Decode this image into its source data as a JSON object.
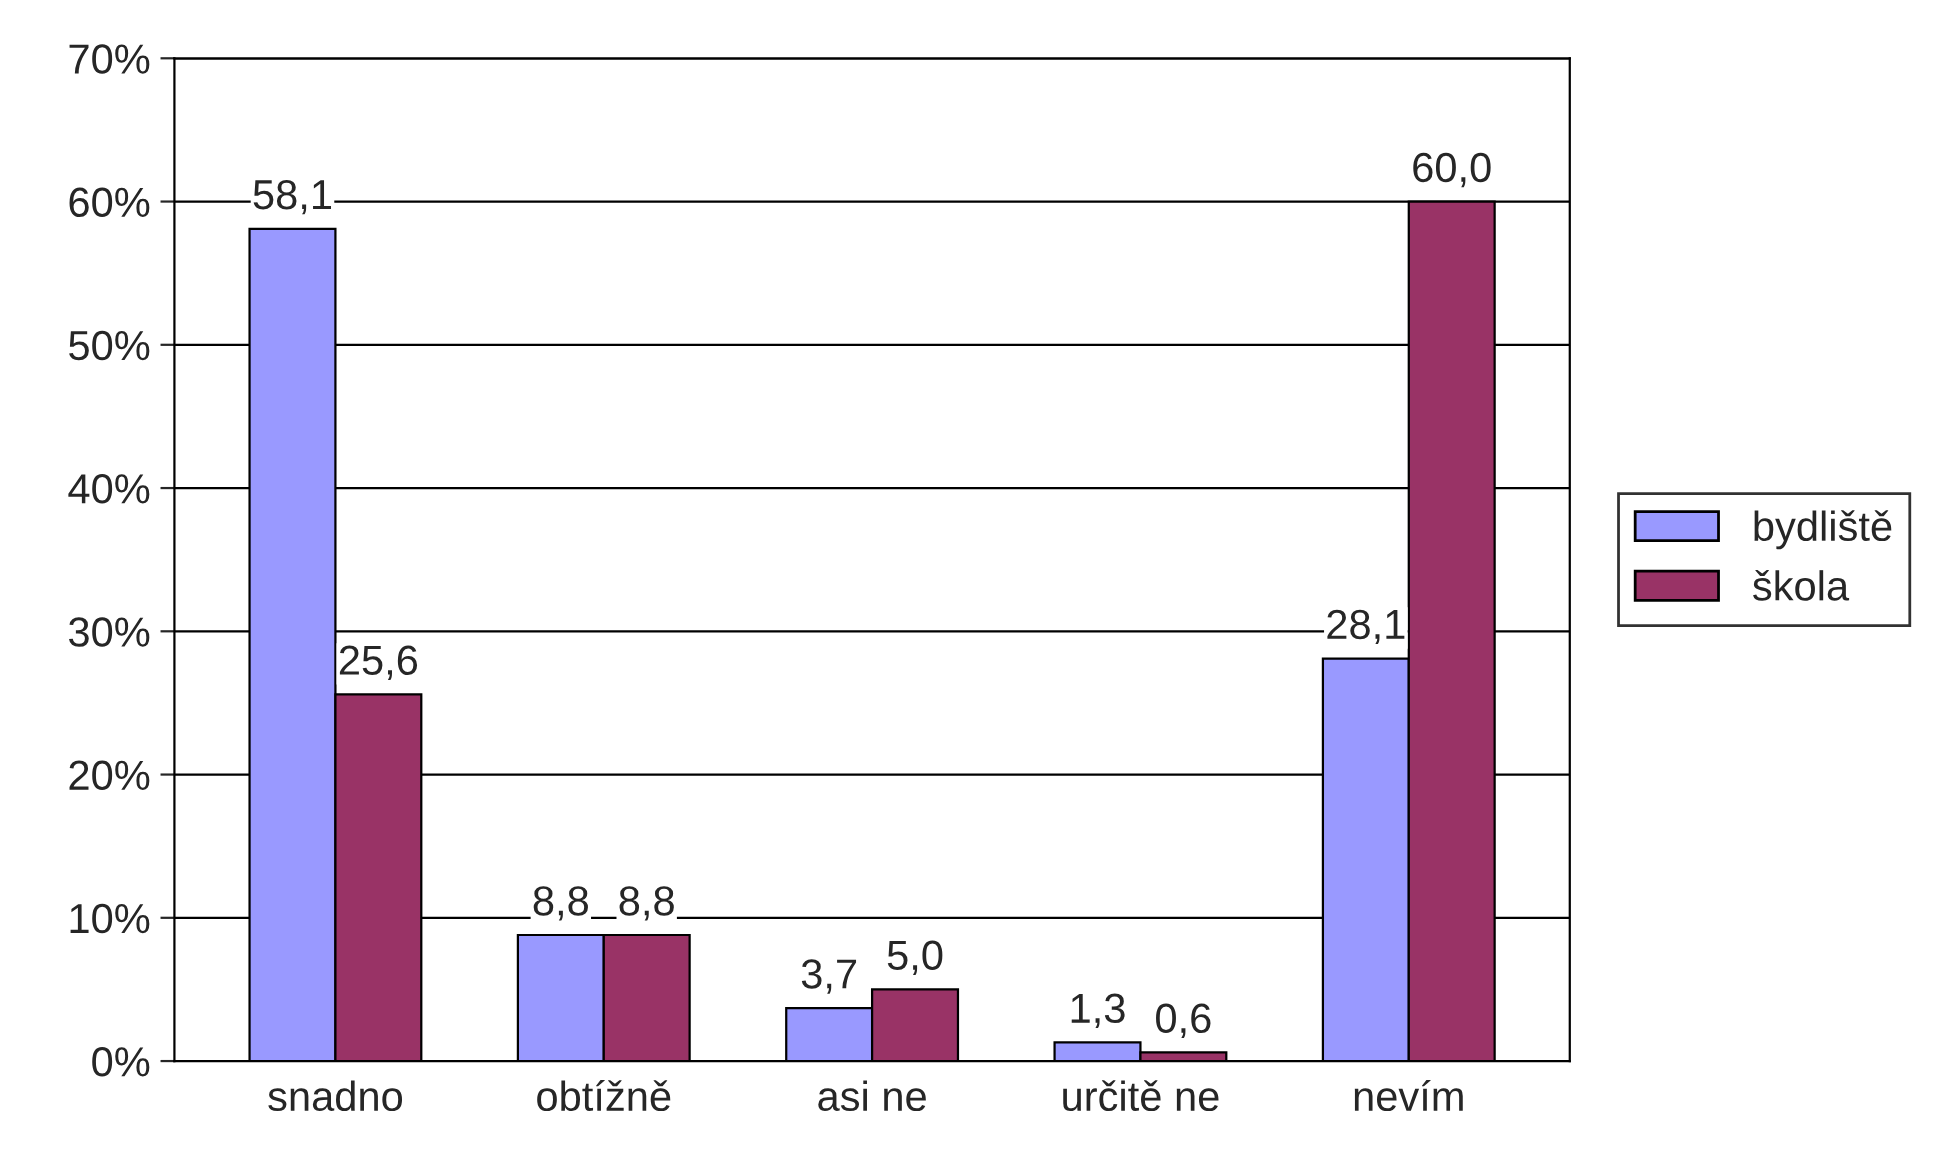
{
  "chart_data": {
    "type": "bar",
    "categories": [
      "snadno",
      "obtížně",
      "asi ne",
      "určitě ne",
      "nevím"
    ],
    "series": [
      {
        "name": "bydliště",
        "color": "#9999ff",
        "values": [
          58.1,
          8.8,
          3.7,
          1.3,
          28.1
        ],
        "value_labels": [
          "58,1",
          "8,8",
          "3,7",
          "1,3",
          "28,1"
        ]
      },
      {
        "name": "škola",
        "color": "#993366",
        "values": [
          25.6,
          8.8,
          5.0,
          0.6,
          60.0
        ],
        "value_labels": [
          "25,6",
          "8,8",
          "5,0",
          "0,6",
          "60,0"
        ]
      }
    ],
    "ylim": [
      0,
      70
    ],
    "yticks": [
      {
        "value": 0,
        "label": "0%"
      },
      {
        "value": 10,
        "label": "10%"
      },
      {
        "value": 20,
        "label": "20%"
      },
      {
        "value": 30,
        "label": "30%"
      },
      {
        "value": 40,
        "label": "40%"
      },
      {
        "value": 50,
        "label": "50%"
      },
      {
        "value": 60,
        "label": "60%"
      },
      {
        "value": 70,
        "label": "70%"
      }
    ],
    "grid": "y",
    "legend": "right"
  }
}
